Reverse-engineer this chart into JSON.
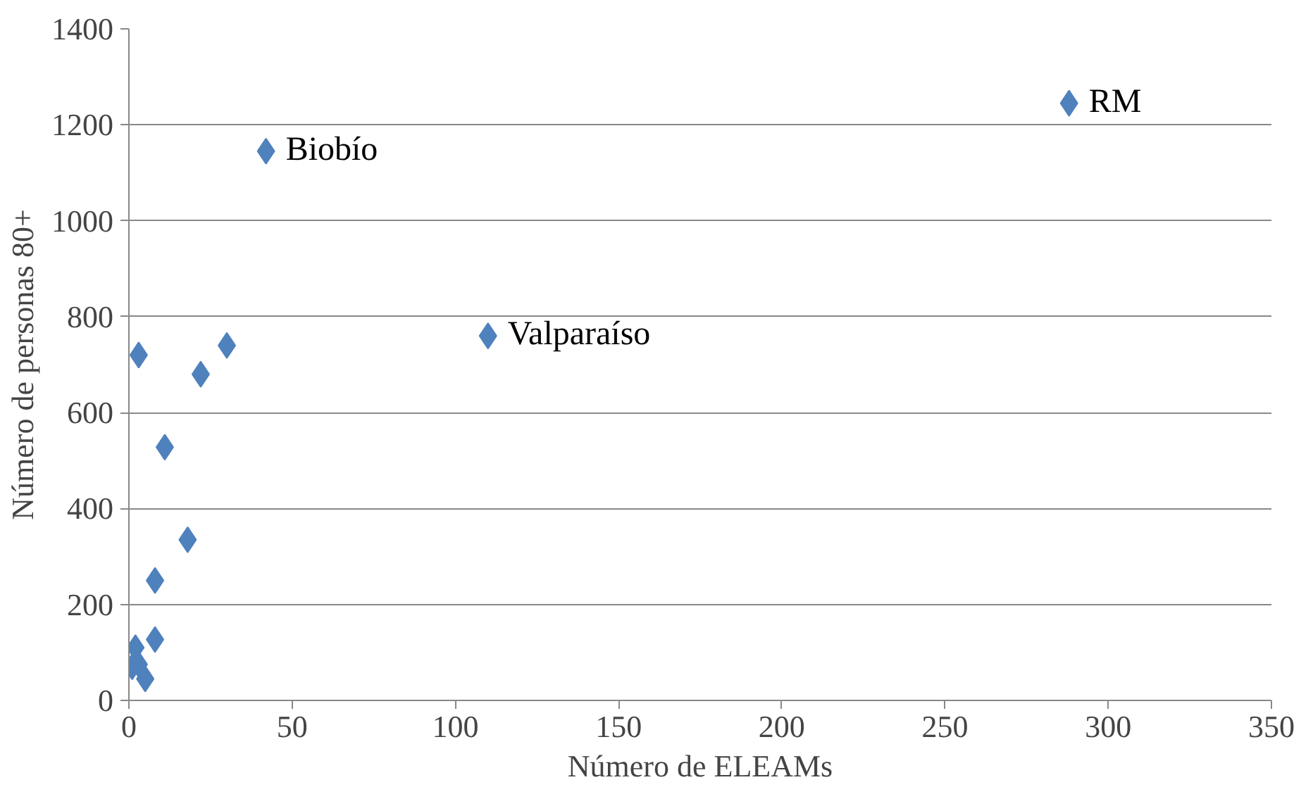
{
  "chart_data": {
    "type": "scatter",
    "xlabel": "Número de ELEAMs",
    "ylabel": "Número de personas 80+",
    "x": [
      288,
      42,
      110,
      3,
      22,
      30,
      11,
      18,
      8,
      8,
      2,
      1,
      3,
      5
    ],
    "series": [
      {
        "color": "#4f81bd",
        "values": [
          1245,
          1145,
          760,
          720,
          680,
          740,
          528,
          335,
          250,
          127,
          110,
          70,
          75,
          45
        ]
      }
    ],
    "marker": "diamond",
    "grid": "y",
    "xlim": [
      0,
      350
    ],
    "xticks": [
      0,
      50,
      100,
      150,
      200,
      250,
      300,
      350
    ],
    "ylim": [
      0,
      1400
    ],
    "yticks": [
      0,
      200,
      400,
      600,
      800,
      1000,
      1200,
      1400
    ],
    "annotations": [
      {
        "text": "RM",
        "x": 288,
        "y": 1245
      },
      {
        "text": "Biobío",
        "x": 42,
        "y": 1145
      },
      {
        "text": "Valparaíso",
        "x": 110,
        "y": 760
      }
    ]
  }
}
